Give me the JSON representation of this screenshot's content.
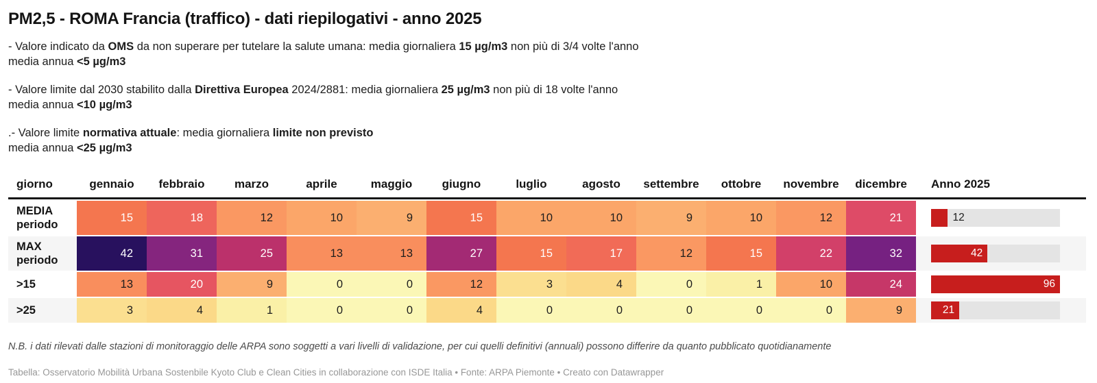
{
  "title": "PM2,5 - ROMA Francia (traffico) - dati riepilogativi - anno 2025",
  "intro": [
    [
      [
        {
          "t": "- Valore indicato da "
        },
        {
          "t": "OMS",
          "b": 1
        },
        {
          "t": " da non superare per tutelare la salute umana: media giornaliera "
        },
        {
          "t": "15 µg/m3",
          "b": 1
        },
        {
          "t": " non più di 3/4 volte l'anno"
        }
      ],
      [
        {
          "t": "media annua "
        },
        {
          "t": "<5 µg/m3",
          "b": 1
        }
      ]
    ],
    [
      [
        {
          "t": "- Valore limite dal 2030 stabilito dalla "
        },
        {
          "t": "Direttiva Europea",
          "b": 1
        },
        {
          "t": " 2024/2881: media giornaliera "
        },
        {
          "t": "25 µg/m3",
          "b": 1
        },
        {
          "t": " non più di 18 volte l'anno"
        }
      ],
      [
        {
          "t": "media annua "
        },
        {
          "t": "<10 µg/m3",
          "b": 1
        }
      ]
    ],
    [
      [
        {
          "t": ".- Valore limite "
        },
        {
          "t": "normativa attuale",
          "b": 1
        },
        {
          "t": ": media giornaliera "
        },
        {
          "t": "limite non previsto",
          "b": 1
        }
      ],
      [
        {
          "t": "media annua "
        },
        {
          "t": "<25 µg/m3",
          "b": 1
        }
      ]
    ]
  ],
  "table": {
    "first_col_label": "giorno",
    "anno_col_label": "Anno 2025"
  },
  "chart_data": {
    "type": "heatmap",
    "title": "PM2,5 - ROMA Francia (traffico) - dati riepilogativi - anno 2025",
    "columns": [
      "gennaio",
      "febbraio",
      "marzo",
      "aprile",
      "maggio",
      "giugno",
      "luglio",
      "agosto",
      "settembre",
      "ottobre",
      "novembre",
      "dicembre"
    ],
    "rows": [
      "MEDIA periodo",
      "MAX periodo",
      ">15",
      ">25"
    ],
    "values": [
      [
        15,
        18,
        12,
        10,
        9,
        15,
        10,
        10,
        9,
        10,
        12,
        21
      ],
      [
        42,
        31,
        25,
        13,
        13,
        27,
        15,
        17,
        12,
        15,
        22,
        32
      ],
      [
        13,
        20,
        9,
        0,
        0,
        12,
        3,
        4,
        0,
        1,
        10,
        24
      ],
      [
        3,
        4,
        1,
        0,
        0,
        4,
        0,
        0,
        0,
        0,
        0,
        9
      ]
    ],
    "anno_2025_values": [
      12,
      42,
      96,
      21
    ],
    "bar_scale_max": 96,
    "legend_position": "none",
    "grid": false
  },
  "heatmap_colors": {
    "0": "#fbf7b6",
    "1": "#faf0a7",
    "3": "#fbdf90",
    "4": "#fbd988",
    "9": "#fbaf70",
    "10": "#fba669",
    "12": "#fa9862",
    "13": "#f98e5d",
    "15": "#f4764f",
    "17": "#f16b57",
    "18": "#ee655c",
    "20": "#e65561",
    "21": "#de4b67",
    "22": "#d24069",
    "24": "#c63768",
    "25": "#bb316b",
    "27": "#a32a74",
    "31": "#85257e",
    "32": "#762181",
    "42": "#28115e"
  },
  "bar": {
    "color": "#c71e1d",
    "track_color": "#e4e4e4",
    "inside_text_color": "#ffffff",
    "outside_text_color": "#1d1d1d"
  },
  "text_colors": {
    "light": "#ffffff",
    "dark": "#1d1d1d",
    "white_text_threshold": 15
  },
  "note": "N.B. i dati rilevati dalle stazioni di monitoraggio delle ARPA sono soggetti a vari livelli di validazione, per cui quelli definitivi (annuali) possono differire da quanto pubblicato quotidianamente",
  "source": "Tabella: Osservatorio Mobilità Urbana Sostenbile Kyoto Club e Clean Cities in collaborazione con ISDE Italia • Fonte: ARPA Piemonte • Creato con Datawrapper"
}
